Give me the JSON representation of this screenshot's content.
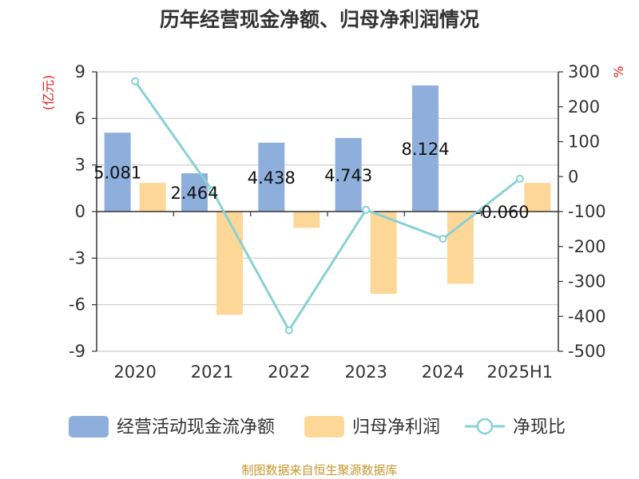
{
  "title": "历年经营现金净额、归母净利润情况",
  "left_axis_unit": "(亿元)",
  "right_axis_unit": "%",
  "source": "制图数据来自恒生聚源数据库",
  "colors": {
    "cash_flow": "#8eaedb",
    "net_profit": "#fdd797",
    "ratio": "#88d1d6",
    "unit_red": "#e0211c",
    "source": "#c5962b",
    "grid": "#cccccc",
    "axis": "#333333"
  },
  "legend": [
    {
      "label": "经营活动现金流净额",
      "kind": "bar",
      "color": "#8eaedb"
    },
    {
      "label": "归母净利润",
      "kind": "bar",
      "color": "#fdd797"
    },
    {
      "label": "净现比",
      "kind": "line",
      "color": "#88d1d6"
    }
  ],
  "chart_data": {
    "type": "bar",
    "title": "历年经营现金净额、归母净利润情况",
    "categories": [
      "2020",
      "2021",
      "2022",
      "2023",
      "2024",
      "2025H1"
    ],
    "y_left": {
      "unit": "(亿元)",
      "ylim": [
        -9,
        9
      ],
      "ticks": [
        9,
        6,
        3,
        0,
        -3,
        -6,
        -9
      ]
    },
    "y_right": {
      "unit": "%",
      "ylim": [
        -500,
        300
      ],
      "ticks": [
        300,
        200,
        100,
        0,
        -100,
        -200,
        -300,
        -400,
        -500
      ]
    },
    "series": [
      {
        "name": "经营活动现金流净额",
        "type": "bar",
        "axis": "left",
        "values": [
          5.081,
          2.464,
          4.438,
          4.743,
          8.124,
          -0.06
        ],
        "labels": [
          "5.081",
          "2.464",
          "4.438",
          "4.743",
          "8.124",
          "-0.060"
        ]
      },
      {
        "name": "归母净利润",
        "type": "bar",
        "axis": "left",
        "values": [
          1.85,
          -6.65,
          -1.05,
          -5.3,
          -4.65,
          1.85
        ]
      },
      {
        "name": "净现比",
        "type": "line",
        "axis": "right",
        "values": [
          273,
          -39,
          -440,
          -95,
          -178,
          -6
        ]
      }
    ],
    "grid": true,
    "legend_position": "bottom"
  }
}
